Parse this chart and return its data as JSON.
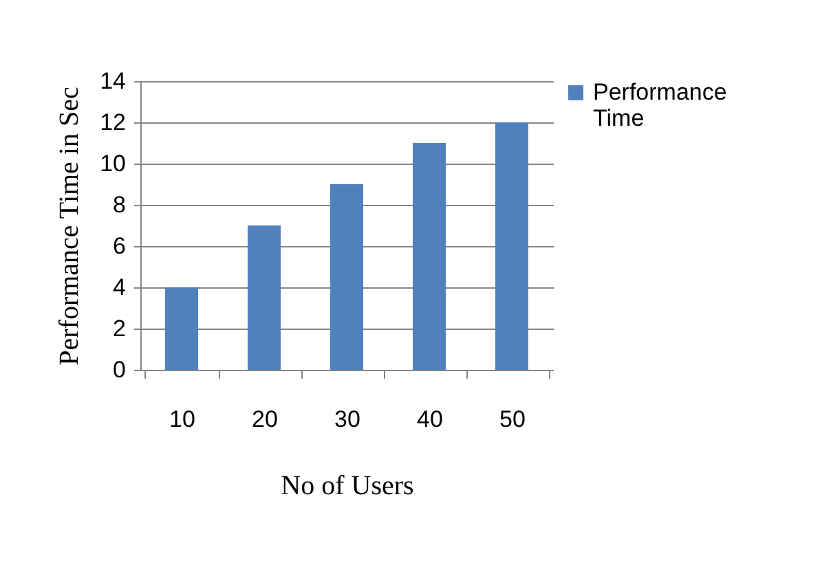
{
  "chart_data": {
    "type": "bar",
    "xlabel": "No of Users",
    "ylabel": "Performance Time in Sec",
    "categories": [
      "10",
      "20",
      "30",
      "40",
      "50"
    ],
    "series": [
      {
        "name": "Performance Time",
        "color": "#4f81bd",
        "values": [
          4,
          7,
          9,
          11,
          12
        ]
      }
    ],
    "ylim": [
      0,
      14
    ],
    "yticks": [
      0,
      2,
      4,
      6,
      8,
      10,
      12,
      14
    ],
    "grid": "y",
    "legend": "right"
  }
}
